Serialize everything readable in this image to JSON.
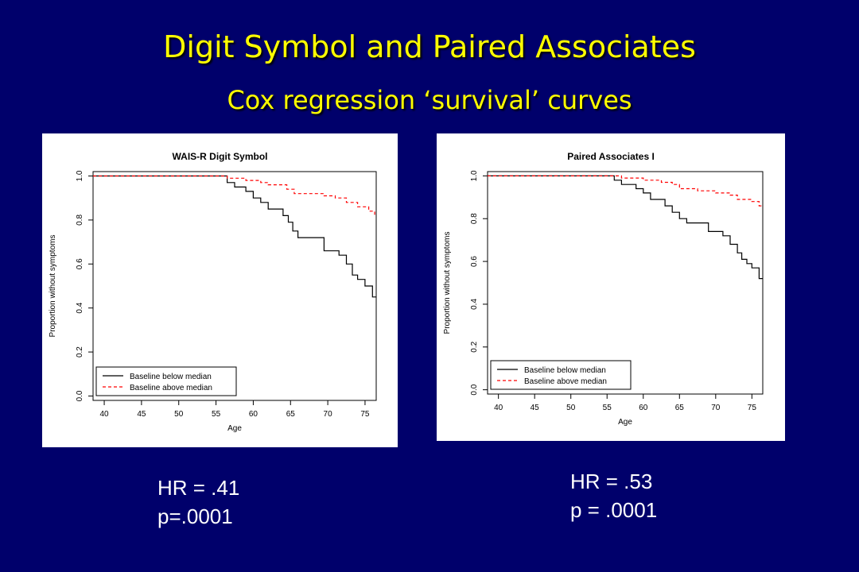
{
  "slide": {
    "title": "Digit Symbol and Paired Associates",
    "subtitle": "Cox regression ‘survival’ curves"
  },
  "stats": [
    {
      "hr": "HR =  .41",
      "p": "p=.0001"
    },
    {
      "hr": "HR =  .53",
      "p": "p =  .0001"
    }
  ],
  "colors": {
    "background": "#00006b",
    "title": "#ffff00",
    "below": "#000000",
    "above": "#ff0000"
  },
  "chart_data": [
    {
      "type": "line",
      "title": "WAIS-R Digit Symbol",
      "xlabel": "Age",
      "ylabel": "Proportion without symptoms",
      "xlim": [
        38.5,
        76.5
      ],
      "ylim": [
        -0.02,
        1.02
      ],
      "x_ticks": [
        "40",
        "45",
        "50",
        "55",
        "60",
        "65",
        "70",
        "75"
      ],
      "y_ticks": [
        "0.0",
        "0.2",
        "0.4",
        "0.6",
        "0.8",
        "1.0"
      ],
      "legend_position": "bottom-left",
      "series": [
        {
          "name": "Baseline below median",
          "style": "solid",
          "color": "#000000",
          "points": [
            [
              38.5,
              1.0
            ],
            [
              56.5,
              1.0
            ],
            [
              56.5,
              0.97
            ],
            [
              57.5,
              0.97
            ],
            [
              57.5,
              0.95
            ],
            [
              59,
              0.95
            ],
            [
              59,
              0.93
            ],
            [
              60,
              0.93
            ],
            [
              60,
              0.9
            ],
            [
              61,
              0.9
            ],
            [
              61,
              0.88
            ],
            [
              62,
              0.88
            ],
            [
              62,
              0.85
            ],
            [
              64,
              0.85
            ],
            [
              64,
              0.82
            ],
            [
              64.7,
              0.82
            ],
            [
              64.7,
              0.79
            ],
            [
              65.3,
              0.79
            ],
            [
              65.3,
              0.75
            ],
            [
              66,
              0.75
            ],
            [
              66,
              0.72
            ],
            [
              69.5,
              0.72
            ],
            [
              69.5,
              0.66
            ],
            [
              71.5,
              0.66
            ],
            [
              71.5,
              0.64
            ],
            [
              72.5,
              0.64
            ],
            [
              72.5,
              0.6
            ],
            [
              73.3,
              0.6
            ],
            [
              73.3,
              0.55
            ],
            [
              74,
              0.55
            ],
            [
              74,
              0.53
            ],
            [
              75,
              0.53
            ],
            [
              75,
              0.5
            ],
            [
              76,
              0.5
            ],
            [
              76,
              0.45
            ],
            [
              76.5,
              0.45
            ]
          ]
        },
        {
          "name": "Baseline above median",
          "style": "dashed",
          "color": "#ff0000",
          "points": [
            [
              38.5,
              1.0
            ],
            [
              56.5,
              1.0
            ],
            [
              56.5,
              0.99
            ],
            [
              59,
              0.99
            ],
            [
              59,
              0.98
            ],
            [
              61,
              0.98
            ],
            [
              61,
              0.97
            ],
            [
              62,
              0.97
            ],
            [
              62,
              0.96
            ],
            [
              64.5,
              0.96
            ],
            [
              64.5,
              0.94
            ],
            [
              65.5,
              0.94
            ],
            [
              65.5,
              0.92
            ],
            [
              69.5,
              0.92
            ],
            [
              69.5,
              0.91
            ],
            [
              71,
              0.91
            ],
            [
              71,
              0.9
            ],
            [
              72.5,
              0.9
            ],
            [
              72.5,
              0.88
            ],
            [
              74,
              0.88
            ],
            [
              74,
              0.86
            ],
            [
              75.5,
              0.86
            ],
            [
              75.5,
              0.84
            ],
            [
              76.3,
              0.84
            ],
            [
              76.3,
              0.82
            ],
            [
              76.5,
              0.82
            ]
          ]
        }
      ]
    },
    {
      "type": "line",
      "title": "Paired Associates I",
      "xlabel": "Age",
      "ylabel": "Proportion without symptoms",
      "xlim": [
        38.5,
        76.5
      ],
      "ylim": [
        -0.02,
        1.02
      ],
      "x_ticks": [
        "40",
        "45",
        "50",
        "55",
        "60",
        "65",
        "70",
        "75"
      ],
      "y_ticks": [
        "0.0",
        "0.2",
        "0.4",
        "0.6",
        "0.8",
        "1.0"
      ],
      "legend_position": "bottom-left",
      "series": [
        {
          "name": "Baseline below median",
          "style": "solid",
          "color": "#000000",
          "points": [
            [
              38.5,
              1.0
            ],
            [
              56,
              1.0
            ],
            [
              56,
              0.98
            ],
            [
              57,
              0.98
            ],
            [
              57,
              0.96
            ],
            [
              59,
              0.96
            ],
            [
              59,
              0.94
            ],
            [
              60,
              0.94
            ],
            [
              60,
              0.92
            ],
            [
              61,
              0.92
            ],
            [
              61,
              0.89
            ],
            [
              63,
              0.89
            ],
            [
              63,
              0.86
            ],
            [
              64,
              0.86
            ],
            [
              64,
              0.83
            ],
            [
              65,
              0.83
            ],
            [
              65,
              0.8
            ],
            [
              66,
              0.8
            ],
            [
              66,
              0.78
            ],
            [
              69,
              0.78
            ],
            [
              69,
              0.74
            ],
            [
              71,
              0.74
            ],
            [
              71,
              0.72
            ],
            [
              72,
              0.72
            ],
            [
              72,
              0.68
            ],
            [
              73,
              0.68
            ],
            [
              73,
              0.64
            ],
            [
              73.6,
              0.64
            ],
            [
              73.6,
              0.61
            ],
            [
              74.3,
              0.61
            ],
            [
              74.3,
              0.59
            ],
            [
              75,
              0.59
            ],
            [
              75,
              0.57
            ],
            [
              76,
              0.57
            ],
            [
              76,
              0.52
            ],
            [
              76.5,
              0.52
            ]
          ]
        },
        {
          "name": "Baseline above median",
          "style": "dashed",
          "color": "#ff0000",
          "points": [
            [
              38.5,
              1.0
            ],
            [
              57,
              1.0
            ],
            [
              57,
              0.99
            ],
            [
              60,
              0.99
            ],
            [
              60,
              0.98
            ],
            [
              62.5,
              0.98
            ],
            [
              62.5,
              0.97
            ],
            [
              64,
              0.97
            ],
            [
              64,
              0.96
            ],
            [
              65,
              0.96
            ],
            [
              65,
              0.94
            ],
            [
              67.5,
              0.94
            ],
            [
              67.5,
              0.93
            ],
            [
              70,
              0.93
            ],
            [
              70,
              0.92
            ],
            [
              72,
              0.92
            ],
            [
              72,
              0.91
            ],
            [
              73,
              0.91
            ],
            [
              73,
              0.89
            ],
            [
              75,
              0.89
            ],
            [
              75,
              0.88
            ],
            [
              76,
              0.88
            ],
            [
              76,
              0.86
            ],
            [
              76.5,
              0.86
            ]
          ]
        }
      ]
    }
  ]
}
